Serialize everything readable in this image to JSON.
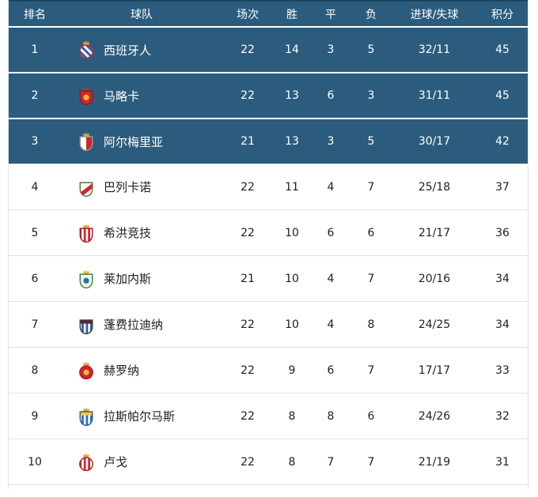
{
  "colors": {
    "header_bg": "#2b5c7d",
    "header_top_border": "#1c4560",
    "highlight_bg": "#2b5c7d",
    "dark_row_text": "#ffffff",
    "light_row_text": "#1f1f1f",
    "light_border": "#e3e3e3"
  },
  "table": {
    "headers": [
      "排名",
      "球队",
      "场次",
      "胜",
      "平",
      "负",
      "进球/失球",
      "积分"
    ],
    "rows": [
      {
        "rank": "1",
        "team": "西班牙人",
        "played": "22",
        "won": "14",
        "drawn": "3",
        "lost": "5",
        "goals": "32/11",
        "points": "45",
        "highlighted": true,
        "crest": {
          "shape": "circle",
          "pattern": "diagonal",
          "c1": "#ffffff",
          "c2": "#2a5fb8",
          "border": "#d2232a",
          "crown": "#e2a63b"
        }
      },
      {
        "rank": "2",
        "team": "马略卡",
        "played": "22",
        "won": "13",
        "drawn": "6",
        "lost": "3",
        "goals": "31/11",
        "points": "45",
        "highlighted": true,
        "crest": {
          "shape": "shield",
          "pattern": "solid",
          "c1": "#d2242b",
          "c2": "#e8b93d",
          "border": "#8e1a1f",
          "crown": "#6b5a2a"
        }
      },
      {
        "rank": "3",
        "team": "阿尔梅里亚",
        "played": "21",
        "won": "13",
        "drawn": "3",
        "lost": "5",
        "goals": "30/17",
        "points": "42",
        "highlighted": true,
        "crest": {
          "shape": "shield",
          "pattern": "halves",
          "c1": "#ffffff",
          "c2": "#d2242b",
          "border": "#9a9a9a",
          "crown": "#e2a63b"
        }
      },
      {
        "rank": "4",
        "team": "巴列卡诺",
        "played": "22",
        "won": "11",
        "drawn": "4",
        "lost": "7",
        "goals": "25/18",
        "points": "37",
        "highlighted": false,
        "crest": {
          "shape": "shield",
          "pattern": "band",
          "c1": "#ffffff",
          "c2": "#d2242b",
          "border": "#6b6b3a",
          "crown": null
        }
      },
      {
        "rank": "5",
        "team": "希洪竞技",
        "played": "22",
        "won": "10",
        "drawn": "6",
        "lost": "6",
        "goals": "21/17",
        "points": "36",
        "highlighted": false,
        "crest": {
          "shape": "shield",
          "pattern": "vertical",
          "c1": "#d2242b",
          "c2": "#ffffff",
          "border": "#a91e24",
          "crown": "#e2a63b"
        }
      },
      {
        "rank": "6",
        "team": "莱加内斯",
        "played": "21",
        "won": "10",
        "drawn": "4",
        "lost": "7",
        "goals": "20/16",
        "points": "34",
        "highlighted": false,
        "crest": {
          "shape": "shield",
          "pattern": "solid",
          "c1": "#f2f2ee",
          "c2": "#2a6fb0",
          "border": "#3a8a3a",
          "crown": "#e8b93d"
        }
      },
      {
        "rank": "7",
        "team": "蓬费拉迪纳",
        "played": "22",
        "won": "10",
        "drawn": "4",
        "lost": "8",
        "goals": "24/25",
        "points": "34",
        "highlighted": false,
        "crest": {
          "shape": "shield",
          "pattern": "chief",
          "c1": "#ffffff",
          "c2": "#2a5fa8",
          "chief": "#5a2330",
          "border": "#3a3a4a",
          "crown": null
        }
      },
      {
        "rank": "8",
        "team": "赫罗纳",
        "played": "22",
        "won": "9",
        "drawn": "6",
        "lost": "7",
        "goals": "17/17",
        "points": "33",
        "highlighted": false,
        "crest": {
          "shape": "circle",
          "pattern": "solid",
          "c1": "#d2242b",
          "c2": "#e8b93d",
          "border": "#b51d23",
          "crown": "#e2a63b"
        }
      },
      {
        "rank": "9",
        "team": "拉斯帕尔马斯",
        "played": "22",
        "won": "8",
        "drawn": "8",
        "lost": "6",
        "goals": "24/26",
        "points": "32",
        "highlighted": false,
        "crest": {
          "shape": "shield",
          "pattern": "chief",
          "c1": "#ffffff",
          "c2": "#2a6fb8",
          "chief": "#f2d23a",
          "border": "#2a5fa8",
          "crown": "#e2a63b"
        }
      },
      {
        "rank": "10",
        "team": "卢戈",
        "played": "22",
        "won": "8",
        "drawn": "7",
        "lost": "7",
        "goals": "21/19",
        "points": "31",
        "highlighted": false,
        "crest": {
          "shape": "circle",
          "pattern": "vertical",
          "c1": "#d2242b",
          "c2": "#ffffff",
          "border": "#b51d23",
          "crown": "#e2a63b"
        }
      }
    ]
  }
}
